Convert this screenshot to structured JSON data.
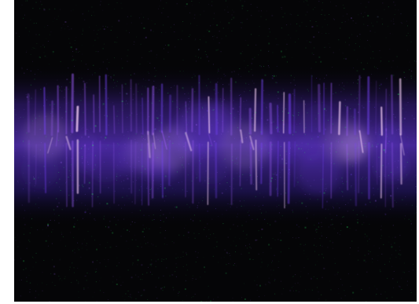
{
  "image": {
    "subject": "",
    "colors": {
      "background": "#050507",
      "band_glow": "#7a45ff",
      "highlight": "#ffd8ff",
      "noise_green": "#2dff6a",
      "noise_purple": "#a060ff"
    }
  }
}
